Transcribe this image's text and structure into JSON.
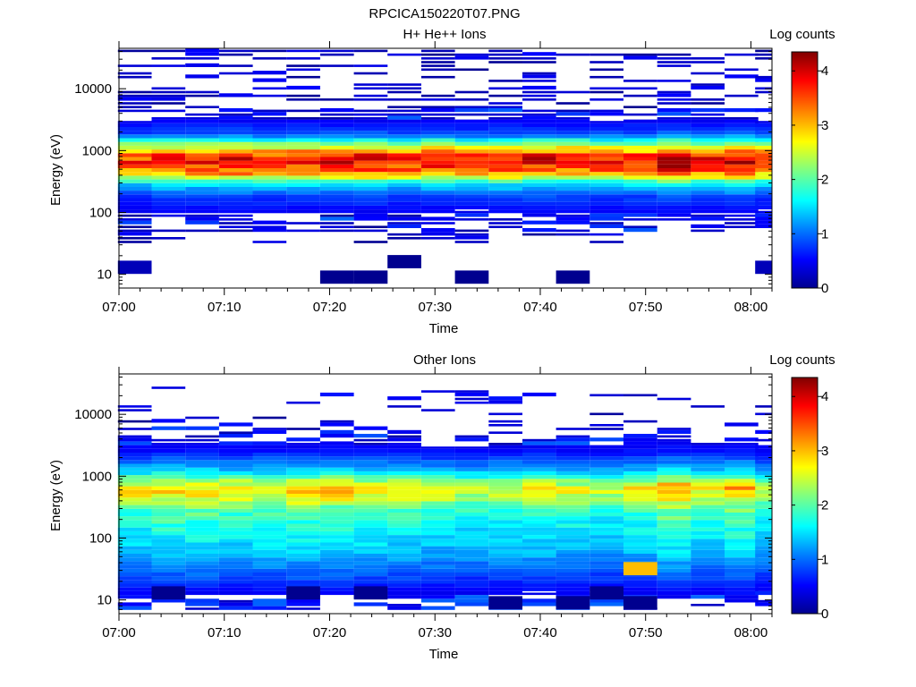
{
  "figure_title": "RPCICA150220T07.PNG",
  "colors": {
    "colormap": [
      "#00008f",
      "#0000ff",
      "#0080ff",
      "#00ffff",
      "#80ff80",
      "#ffff00",
      "#ff8000",
      "#ff0000",
      "#800000"
    ]
  },
  "chart_data": [
    {
      "type": "heatmap",
      "title": "H+ He++ Ions",
      "xlabel": "Time",
      "ylabel": "Energy (eV)",
      "yscale": "log",
      "ylim": [
        6,
        45000
      ],
      "y_ticks": [
        10,
        100,
        1000,
        10000
      ],
      "y_tick_labels": [
        "10",
        "100",
        "1000",
        "10000"
      ],
      "x_tick_labels": [
        "07:00",
        "07:10",
        "07:20",
        "07:30",
        "07:40",
        "07:50",
        "08:00"
      ],
      "xlim_minutes": [
        0,
        62
      ],
      "colorbar": {
        "label": "Log counts",
        "min": 0,
        "max": 4.35,
        "ticks": [
          0,
          1,
          2,
          3,
          4
        ],
        "tick_labels": [
          "0",
          "1",
          "2",
          "3",
          "4"
        ]
      },
      "time_bins_minutes": [
        1.5,
        4.7,
        7.9,
        11.1,
        14.3,
        17.5,
        20.7,
        23.9,
        27.1,
        30.3,
        33.5,
        36.7,
        39.9,
        43.1,
        46.3,
        49.5,
        52.7,
        55.9,
        59.1,
        62.0
      ],
      "profile": [
        {
          "e": 180,
          "v": 0.8
        },
        {
          "e": 300,
          "v": 1.6
        },
        {
          "e": 400,
          "v": 2.9
        },
        {
          "e": 500,
          "v": 3.5
        },
        {
          "e": 650,
          "v": 3.8
        },
        {
          "e": 850,
          "v": 3.5
        },
        {
          "e": 1100,
          "v": 2.7
        },
        {
          "e": 1400,
          "v": 1.9
        },
        {
          "e": 1800,
          "v": 0.9
        }
      ],
      "column_peaks": [
        3.6,
        3.8,
        3.8,
        3.9,
        3.7,
        3.8,
        3.8,
        3.9,
        3.7,
        3.8,
        3.7,
        3.8,
        3.9,
        3.8,
        3.7,
        3.8,
        4.2,
        3.8,
        4.1,
        3.6
      ],
      "sparse_levels": [
        0,
        0.2
      ],
      "sparse_ranges": [
        [
          30,
          250
        ],
        [
          2200,
          42000
        ]
      ],
      "isolated_low_cells": [
        {
          "t": 1.5,
          "e": 13,
          "v": 0.2
        },
        {
          "t": 20.7,
          "e": 9,
          "v": 0
        },
        {
          "t": 23.9,
          "e": 9,
          "v": 0
        },
        {
          "t": 27.1,
          "e": 16,
          "v": 0
        },
        {
          "t": 33.5,
          "e": 9,
          "v": 0
        },
        {
          "t": 43.1,
          "e": 9,
          "v": 0
        },
        {
          "t": 62.0,
          "e": 13,
          "v": 0.2
        }
      ]
    },
    {
      "type": "heatmap",
      "title": "Other Ions",
      "xlabel": "Time",
      "ylabel": "Energy (eV)",
      "yscale": "log",
      "ylim": [
        6,
        45000
      ],
      "y_ticks": [
        10,
        100,
        1000,
        10000
      ],
      "y_tick_labels": [
        "10",
        "100",
        "1000",
        "10000"
      ],
      "x_tick_labels": [
        "07:00",
        "07:10",
        "07:20",
        "07:30",
        "07:40",
        "07:50",
        "08:00"
      ],
      "xlim_minutes": [
        0,
        62
      ],
      "colorbar": {
        "label": "Log counts",
        "min": 0,
        "max": 4.35,
        "ticks": [
          0,
          1,
          2,
          3,
          4
        ],
        "tick_labels": [
          "0",
          "1",
          "2",
          "3",
          "4"
        ]
      },
      "time_bins_minutes": [
        1.5,
        4.7,
        7.9,
        11.1,
        14.3,
        17.5,
        20.7,
        23.9,
        27.1,
        30.3,
        33.5,
        36.7,
        39.9,
        43.1,
        46.3,
        49.5,
        52.7,
        55.9,
        59.1,
        62.0
      ],
      "profile": [
        {
          "e": 25,
          "v": 0.9
        },
        {
          "e": 60,
          "v": 1.4
        },
        {
          "e": 150,
          "v": 1.7
        },
        {
          "e": 300,
          "v": 2.0
        },
        {
          "e": 450,
          "v": 2.6
        },
        {
          "e": 600,
          "v": 2.9
        },
        {
          "e": 800,
          "v": 2.4
        },
        {
          "e": 1200,
          "v": 1.4
        },
        {
          "e": 2500,
          "v": 0.6
        }
      ],
      "column_peaks": [
        2.8,
        3.0,
        3.0,
        2.9,
        2.9,
        3.0,
        3.0,
        2.9,
        2.8,
        2.7,
        2.6,
        2.7,
        2.8,
        2.7,
        2.6,
        2.8,
        3.2,
        2.8,
        3.1,
        2.5
      ],
      "sparse_levels": [
        0,
        0.3
      ],
      "sparse_ranges": [
        [
          3000,
          30000
        ]
      ],
      "isolated_low_cells": [
        {
          "t": 4.7,
          "e": 13,
          "v": 0
        },
        {
          "t": 17.5,
          "e": 13,
          "v": 0
        },
        {
          "t": 23.9,
          "e": 13,
          "v": 0
        },
        {
          "t": 36.7,
          "e": 9,
          "v": 0
        },
        {
          "t": 43.1,
          "e": 9,
          "v": 0
        },
        {
          "t": 46.3,
          "e": 13,
          "v": 0
        },
        {
          "t": 49.5,
          "e": 9,
          "v": 0
        },
        {
          "t": 49.5,
          "e": 32,
          "v": 3.0
        }
      ]
    }
  ]
}
